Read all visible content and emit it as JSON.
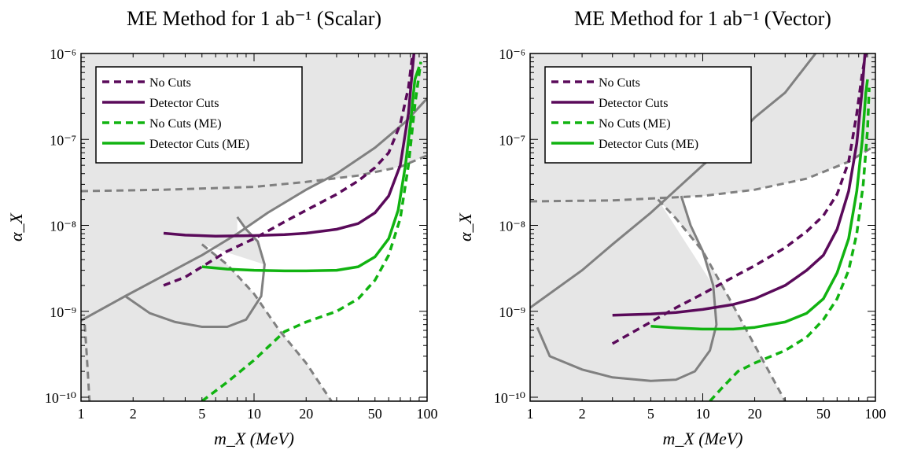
{
  "chart_data": [
    {
      "type": "line",
      "title": "ME Method for 1 ab⁻¹ (Scalar)",
      "xlabel": "m_X (MeV)",
      "ylabel": "α_X",
      "x_scale": "log",
      "y_scale": "log",
      "xlim": [
        1,
        100
      ],
      "ylim": [
        9e-11,
        1e-06
      ],
      "x_ticks": [
        1,
        2,
        5,
        10,
        20,
        50,
        100
      ],
      "x_tick_labels": [
        "1",
        "2",
        "5",
        "10",
        "20",
        "50",
        "100"
      ],
      "y_ticks": [
        1e-10,
        1e-09,
        1e-08,
        1e-07,
        1e-06
      ],
      "y_tick_labels": [
        "10⁻¹⁰",
        "10⁻⁹",
        "10⁻⁸",
        "10⁻⁷",
        "10⁻⁶"
      ],
      "legend_position": "top-left",
      "excluded_region_color": "#e6e6e6",
      "series": [
        {
          "name": "No Cuts",
          "color": "#5a0a5a",
          "dashed": true,
          "points": [
            [
              3,
              2e-09
            ],
            [
              4,
              2.5e-09
            ],
            [
              5,
              3.3e-09
            ],
            [
              7,
              5e-09
            ],
            [
              10,
              7e-09
            ],
            [
              15,
              1.1e-08
            ],
            [
              20,
              1.5e-08
            ],
            [
              30,
              2.3e-08
            ],
            [
              40,
              3.3e-08
            ],
            [
              50,
              4.7e-08
            ],
            [
              60,
              7e-08
            ],
            [
              70,
              1.5e-07
            ],
            [
              78,
              4e-07
            ],
            [
              82,
              9e-07
            ]
          ]
        },
        {
          "name": "Detector Cuts",
          "color": "#5a0a5a",
          "dashed": false,
          "points": [
            [
              3,
              8.1e-09
            ],
            [
              4,
              7.7e-09
            ],
            [
              6,
              7.5e-09
            ],
            [
              10,
              7.6e-09
            ],
            [
              15,
              7.8e-09
            ],
            [
              20,
              8.1e-09
            ],
            [
              30,
              9e-09
            ],
            [
              40,
              1.05e-08
            ],
            [
              50,
              1.4e-08
            ],
            [
              60,
              2.2e-08
            ],
            [
              70,
              5e-08
            ],
            [
              78,
              2e-07
            ],
            [
              82,
              6e-07
            ],
            [
              84,
              1e-06
            ]
          ]
        },
        {
          "name": "No Cuts (ME)",
          "color": "#11b311",
          "dashed": true,
          "points": [
            [
              5,
              9e-11
            ],
            [
              7,
              1.5e-10
            ],
            [
              10,
              2.7e-10
            ],
            [
              15,
              5.8e-10
            ],
            [
              20,
              7.5e-10
            ],
            [
              30,
              1e-09
            ],
            [
              40,
              1.4e-09
            ],
            [
              50,
              2.3e-09
            ],
            [
              60,
              4.5e-09
            ],
            [
              70,
              1.2e-08
            ],
            [
              78,
              5e-08
            ],
            [
              85,
              2.5e-07
            ],
            [
              92,
              8e-07
            ]
          ]
        },
        {
          "name": "Detector Cuts (ME)",
          "color": "#11b311",
          "dashed": false,
          "points": [
            [
              5,
              3.3e-09
            ],
            [
              7,
              3.1e-09
            ],
            [
              10,
              3e-09
            ],
            [
              15,
              2.95e-09
            ],
            [
              20,
              2.95e-09
            ],
            [
              30,
              3e-09
            ],
            [
              40,
              3.3e-09
            ],
            [
              50,
              4.3e-09
            ],
            [
              60,
              7e-09
            ],
            [
              68,
              1.5e-08
            ],
            [
              75,
              5e-08
            ],
            [
              80,
              1.5e-07
            ],
            [
              85,
              5e-07
            ],
            [
              90,
              7e-07
            ]
          ]
        }
      ],
      "bounds": [
        {
          "color": "#808080",
          "dashed": false,
          "points": [
            [
              1,
              7.8e-10
            ],
            [
              1.8,
              1.5e-09
            ],
            [
              3,
              2.6e-09
            ],
            [
              5,
              4.5e-09
            ],
            [
              8,
              8e-09
            ],
            [
              12,
              1.4e-08
            ],
            [
              20,
              2.6e-08
            ],
            [
              30,
              4e-08
            ],
            [
              50,
              8e-08
            ],
            [
              75,
              1.6e-07
            ],
            [
              100,
              3e-07
            ]
          ]
        },
        {
          "color": "#808080",
          "dashed": true,
          "points": [
            [
              1,
              2.5e-08
            ],
            [
              3,
              2.6e-08
            ],
            [
              10,
              2.8e-08
            ],
            [
              20,
              3.2e-08
            ],
            [
              40,
              3.8e-08
            ],
            [
              70,
              4.8e-08
            ],
            [
              100,
              6.5e-08
            ]
          ]
        },
        {
          "color": "#808080",
          "dashed": false,
          "points": [
            [
              1.8,
              1.5e-09
            ],
            [
              2.5,
              9.5e-10
            ],
            [
              3.5,
              7.5e-10
            ],
            [
              5,
              6.6e-10
            ],
            [
              7,
              6.6e-10
            ],
            [
              9,
              8e-10
            ],
            [
              11,
              1.5e-09
            ],
            [
              11.5,
              3.5e-09
            ],
            [
              10.5,
              6.5e-09
            ],
            [
              9,
              9e-09
            ],
            [
              8,
              1.25e-08
            ]
          ]
        },
        {
          "color": "#808080",
          "dashed": true,
          "points": [
            [
              5,
              6e-09
            ],
            [
              7,
              3.5e-09
            ],
            [
              10,
              1.6e-09
            ],
            [
              14,
              6e-10
            ],
            [
              20,
              2.5e-10
            ],
            [
              28,
              9e-11
            ]
          ]
        },
        {
          "color": "#808080",
          "dashed": true,
          "points": [
            [
              1.05,
              7e-10
            ],
            [
              1.08,
              3e-10
            ],
            [
              1.12,
              9e-11
            ]
          ]
        }
      ]
    },
    {
      "type": "line",
      "title": "ME Method for 1 ab⁻¹ (Vector)",
      "xlabel": "m_X (MeV)",
      "ylabel": "α_X",
      "x_scale": "log",
      "y_scale": "log",
      "xlim": [
        1,
        100
      ],
      "ylim": [
        9e-11,
        1e-06
      ],
      "x_ticks": [
        1,
        2,
        5,
        10,
        20,
        50,
        100
      ],
      "x_tick_labels": [
        "1",
        "2",
        "5",
        "10",
        "20",
        "50",
        "100"
      ],
      "y_ticks": [
        1e-10,
        1e-09,
        1e-08,
        1e-07,
        1e-06
      ],
      "y_tick_labels": [
        "10⁻¹⁰",
        "10⁻⁹",
        "10⁻⁸",
        "10⁻⁷",
        "10⁻⁶"
      ],
      "legend_position": "top-left",
      "excluded_region_color": "#e6e6e6",
      "series": [
        {
          "name": "No Cuts",
          "color": "#5a0a5a",
          "dashed": true,
          "points": [
            [
              3,
              4.2e-10
            ],
            [
              5,
              7.5e-10
            ],
            [
              7,
              1.1e-09
            ],
            [
              10,
              1.6e-09
            ],
            [
              15,
              2.5e-09
            ],
            [
              20,
              3.4e-09
            ],
            [
              30,
              5.5e-09
            ],
            [
              40,
              8.5e-09
            ],
            [
              50,
              1.3e-08
            ],
            [
              60,
              2.3e-08
            ],
            [
              70,
              5.5e-08
            ],
            [
              78,
              2e-07
            ],
            [
              84,
              6e-07
            ],
            [
              88,
              1e-06
            ]
          ]
        },
        {
          "name": "Detector Cuts",
          "color": "#5a0a5a",
          "dashed": false,
          "points": [
            [
              3,
              9e-10
            ],
            [
              5,
              9.3e-10
            ],
            [
              7,
              9.7e-10
            ],
            [
              10,
              1.05e-09
            ],
            [
              15,
              1.2e-09
            ],
            [
              20,
              1.4e-09
            ],
            [
              30,
              2e-09
            ],
            [
              40,
              3e-09
            ],
            [
              50,
              4.5e-09
            ],
            [
              60,
              9e-09
            ],
            [
              70,
              2.5e-08
            ],
            [
              78,
              9e-08
            ],
            [
              84,
              4e-07
            ],
            [
              87,
              1e-06
            ]
          ]
        },
        {
          "name": "No Cuts (ME)",
          "color": "#11b311",
          "dashed": true,
          "points": [
            [
              11,
              9e-11
            ],
            [
              13,
              1.3e-10
            ],
            [
              16,
              2e-10
            ],
            [
              20,
              2.5e-10
            ],
            [
              30,
              3.5e-10
            ],
            [
              40,
              5e-10
            ],
            [
              50,
              8e-10
            ],
            [
              60,
              1.4e-09
            ],
            [
              70,
              3e-09
            ],
            [
              78,
              8e-09
            ],
            [
              85,
              3e-08
            ],
            [
              90,
              1.3e-07
            ],
            [
              92,
              4e-07
            ]
          ]
        },
        {
          "name": "Detector Cuts (ME)",
          "color": "#11b311",
          "dashed": false,
          "points": [
            [
              5,
              6.7e-10
            ],
            [
              7,
              6.4e-10
            ],
            [
              10,
              6.2e-10
            ],
            [
              15,
              6.2e-10
            ],
            [
              20,
              6.5e-10
            ],
            [
              30,
              7.5e-10
            ],
            [
              40,
              9.5e-10
            ],
            [
              50,
              1.4e-09
            ],
            [
              60,
              2.8e-09
            ],
            [
              70,
              7e-09
            ],
            [
              78,
              2.5e-08
            ],
            [
              84,
              1e-07
            ],
            [
              88,
              3.5e-07
            ],
            [
              90,
              5e-07
            ]
          ]
        }
      ],
      "bounds": [
        {
          "color": "#808080",
          "dashed": false,
          "points": [
            [
              1,
              1.1e-09
            ],
            [
              2,
              3e-09
            ],
            [
              3,
              6e-09
            ],
            [
              5,
              1.4e-08
            ],
            [
              7,
              2.6e-08
            ],
            [
              10,
              5e-08
            ],
            [
              15,
              1e-07
            ],
            [
              20,
              1.8e-07
            ],
            [
              30,
              3.5e-07
            ],
            [
              45,
              1e-06
            ]
          ]
        },
        {
          "color": "#808080",
          "dashed": true,
          "points": [
            [
              1,
              1.9e-08
            ],
            [
              3,
              1.95e-08
            ],
            [
              10,
              2.2e-08
            ],
            [
              20,
              2.6e-08
            ],
            [
              40,
              3.5e-08
            ],
            [
              70,
              5.5e-08
            ],
            [
              100,
              8.5e-08
            ]
          ]
        },
        {
          "color": "#808080",
          "dashed": false,
          "points": [
            [
              1.1,
              6.5e-10
            ],
            [
              1.3,
              3e-10
            ],
            [
              2,
              2.1e-10
            ],
            [
              3,
              1.7e-10
            ],
            [
              5,
              1.55e-10
            ],
            [
              7,
              1.6e-10
            ],
            [
              9,
              2e-10
            ],
            [
              11,
              3.5e-10
            ],
            [
              12,
              7e-10
            ],
            [
              11.5,
              2e-09
            ],
            [
              10,
              5e-09
            ],
            [
              8.5,
              1e-08
            ],
            [
              7.5,
              2.2e-08
            ]
          ]
        },
        {
          "color": "#808080",
          "dashed": true,
          "points": [
            [
              5.5,
              2e-08
            ],
            [
              7,
              1.2e-08
            ],
            [
              10,
              5e-09
            ],
            [
              14,
              1.5e-09
            ],
            [
              20,
              4e-10
            ],
            [
              30,
              9e-11
            ]
          ]
        }
      ]
    }
  ]
}
